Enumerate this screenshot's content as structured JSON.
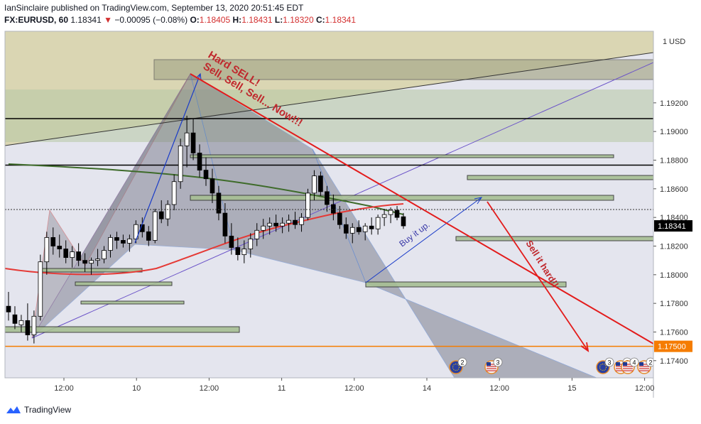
{
  "header": {
    "line1": "IanSinclaire published on TradingView.com, September 13, 2020 20:51:45 EDT",
    "symbol": "FX:EURUSD, 60",
    "last": "1.18341",
    "change": "−0.00095 (−0.08%)",
    "o_label": "O:",
    "o": "1.18405",
    "h_label": "H:",
    "h": "1.18431",
    "l_label": "L:",
    "l": "1.18320",
    "c_label": "C:",
    "c": "1.18341"
  },
  "footer": {
    "brand": "TradingView"
  },
  "colors": {
    "bull": "#ffffff",
    "bear": "#000000",
    "accent_red": "#e31b1b",
    "annotation": "#c0282d",
    "orange_line": "#f57c00",
    "price_tag_black": "#000000",
    "price_tag_orange": "#f57c00",
    "blue_line": "#1a3cc8",
    "purple_line": "#6a52c8",
    "ema_red": "#e53935",
    "ema_green": "#3e6b2a"
  },
  "chart_data": {
    "type": "candlestick",
    "symbol": "FX:EURUSD",
    "interval": "60",
    "currency": "USD",
    "ylim": [
      1.1728,
      1.197
    ],
    "y_ticks": [
      "1.19200",
      "1.19000",
      "1.18800",
      "1.18600",
      "1.18400",
      "1.18200",
      "1.18000",
      "1.17800",
      "1.17600",
      "1.17400"
    ],
    "x_ticks": [
      "12:00",
      "10",
      "12:00",
      "11",
      "12:00",
      "14",
      "12:00",
      "15",
      "12:00"
    ],
    "price_tags": [
      {
        "value": 1.18341,
        "label": "1.18341",
        "style": "black"
      },
      {
        "value": 1.175,
        "label": "1.17500",
        "style": "orange"
      }
    ],
    "horizontal_lines": [
      {
        "value": 1.1909,
        "color": "#000000"
      },
      {
        "value": 1.18765,
        "color": "#000000"
      },
      {
        "value": 1.175,
        "color": "#f57c00"
      }
    ],
    "candles": [
      [
        1.1778,
        1.1788,
        1.1768,
        1.1774
      ],
      [
        1.1772,
        1.1778,
        1.1762,
        1.1766
      ],
      [
        1.1765,
        1.1772,
        1.176,
        1.1768
      ],
      [
        1.1768,
        1.178,
        1.1754,
        1.1758
      ],
      [
        1.1758,
        1.1775,
        1.1752,
        1.1771
      ],
      [
        1.1771,
        1.1814,
        1.1768,
        1.1809
      ],
      [
        1.1809,
        1.183,
        1.18,
        1.1826
      ],
      [
        1.1826,
        1.1833,
        1.1814,
        1.182
      ],
      [
        1.182,
        1.1828,
        1.1812,
        1.1818
      ],
      [
        1.1818,
        1.1824,
        1.1808,
        1.1812
      ],
      [
        1.1812,
        1.182,
        1.1805,
        1.1816
      ],
      [
        1.1816,
        1.1822,
        1.1806,
        1.181
      ],
      [
        1.181,
        1.1815,
        1.1802,
        1.1808
      ],
      [
        1.1808,
        1.1812,
        1.18,
        1.181
      ],
      [
        1.181,
        1.1818,
        1.1806,
        1.1811
      ],
      [
        1.1811,
        1.182,
        1.1808,
        1.1817
      ],
      [
        1.1817,
        1.1828,
        1.1812,
        1.1826
      ],
      [
        1.1826,
        1.183,
        1.1818,
        1.1824
      ],
      [
        1.1824,
        1.1828,
        1.1819,
        1.1822
      ],
      [
        1.1822,
        1.1828,
        1.1816,
        1.1825
      ],
      [
        1.1825,
        1.1838,
        1.1822,
        1.1835
      ],
      [
        1.1835,
        1.184,
        1.1826,
        1.183
      ],
      [
        1.183,
        1.1834,
        1.182,
        1.1824
      ],
      [
        1.1824,
        1.1846,
        1.1822,
        1.1844
      ],
      [
        1.1844,
        1.1852,
        1.1836,
        1.1839
      ],
      [
        1.1839,
        1.1852,
        1.1834,
        1.1849
      ],
      [
        1.1849,
        1.187,
        1.1845,
        1.1865
      ],
      [
        1.1865,
        1.1895,
        1.186,
        1.189
      ],
      [
        1.189,
        1.1911,
        1.1875,
        1.1899
      ],
      [
        1.1899,
        1.1909,
        1.188,
        1.1885
      ],
      [
        1.1885,
        1.1891,
        1.1868,
        1.1873
      ],
      [
        1.1873,
        1.1882,
        1.1862,
        1.1867
      ],
      [
        1.1867,
        1.1874,
        1.185,
        1.1857
      ],
      [
        1.1857,
        1.1862,
        1.1838,
        1.1843
      ],
      [
        1.1843,
        1.185,
        1.1822,
        1.1827
      ],
      [
        1.1827,
        1.1836,
        1.1814,
        1.1819
      ],
      [
        1.1819,
        1.1826,
        1.181,
        1.1814
      ],
      [
        1.1814,
        1.1824,
        1.1808,
        1.1818
      ],
      [
        1.1818,
        1.1829,
        1.1812,
        1.1825
      ],
      [
        1.1825,
        1.1836,
        1.182,
        1.1831
      ],
      [
        1.1831,
        1.1839,
        1.1825,
        1.1834
      ],
      [
        1.1834,
        1.184,
        1.1828,
        1.1836
      ],
      [
        1.1836,
        1.1842,
        1.183,
        1.1834
      ],
      [
        1.1834,
        1.184,
        1.1829,
        1.1836
      ],
      [
        1.1836,
        1.1842,
        1.183,
        1.1838
      ],
      [
        1.1838,
        1.1844,
        1.1832,
        1.1835
      ],
      [
        1.1835,
        1.1843,
        1.183,
        1.184
      ],
      [
        1.184,
        1.186,
        1.1838,
        1.1857
      ],
      [
        1.1857,
        1.1873,
        1.1852,
        1.1869
      ],
      [
        1.1869,
        1.1872,
        1.1855,
        1.1858
      ],
      [
        1.1858,
        1.1862,
        1.1844,
        1.1849
      ],
      [
        1.1849,
        1.1856,
        1.1838,
        1.1843
      ],
      [
        1.1843,
        1.1848,
        1.1832,
        1.1835
      ],
      [
        1.1835,
        1.184,
        1.1825,
        1.1829
      ],
      [
        1.1829,
        1.1836,
        1.1822,
        1.1833
      ],
      [
        1.1833,
        1.1838,
        1.1828,
        1.183
      ],
      [
        1.183,
        1.1836,
        1.1824,
        1.1834
      ],
      [
        1.1834,
        1.184,
        1.1828,
        1.1832
      ],
      [
        1.1832,
        1.1842,
        1.1828,
        1.184
      ],
      [
        1.184,
        1.1846,
        1.1834,
        1.1842
      ],
      [
        1.1842,
        1.1847,
        1.1836,
        1.1845
      ],
      [
        1.1845,
        1.1848,
        1.1838,
        1.184
      ],
      [
        1.18405,
        1.18431,
        1.1832,
        1.18341
      ]
    ]
  },
  "annotations": {
    "hard_sell": "Hard SELL!",
    "sell_now": "Sell, Sell, Sell... Now!!!",
    "buy_up": "Buy it up.",
    "sell_hard": "Sell it hard!!"
  },
  "event_badges": [
    {
      "icon": "eu-flag-icon",
      "count": "2"
    },
    {
      "icon": "us-flag-icon",
      "count": "3"
    },
    {
      "icon": "eu-flag-icon",
      "count": "3"
    },
    {
      "icon": "us-flag-icon",
      "count": "6"
    },
    {
      "icon": "us-flag-icon",
      "count": "4"
    },
    {
      "icon": "us-flag-icon",
      "count": "2"
    }
  ]
}
